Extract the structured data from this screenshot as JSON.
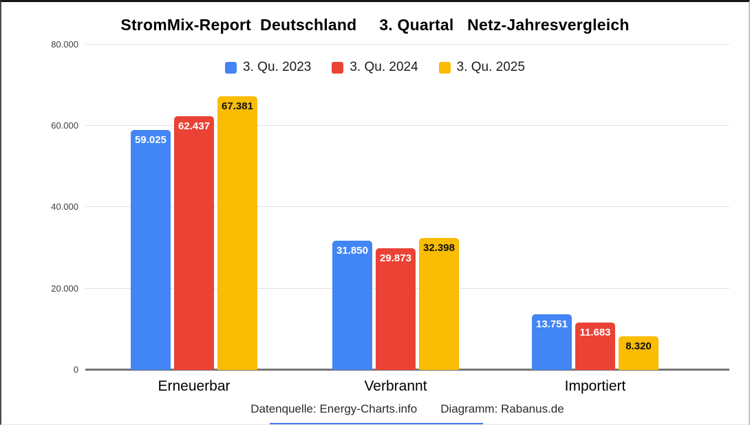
{
  "chart_data": {
    "type": "bar",
    "title": "StromMix-Report  Deutschland     3. Quartal   Netz-Jahresvergleich",
    "xlabel": "",
    "ylabel": "",
    "ylim": [
      0,
      80000
    ],
    "grid": true,
    "legend_position": "top",
    "categories": [
      "Erneuerbar",
      "Verbrannt",
      "Importiert"
    ],
    "series": [
      {
        "name": "3. Qu. 2023",
        "color": "#4285F4",
        "label_color": "#ffffff",
        "values": [
          59025,
          31850,
          13751
        ],
        "labels": [
          "59.025",
          "31.850",
          "13.751"
        ]
      },
      {
        "name": "3. Qu. 2024",
        "color": "#EA4335",
        "label_color": "#ffffff",
        "values": [
          62437,
          29873,
          11683
        ],
        "labels": [
          "62.437",
          "29.873",
          "11.683"
        ]
      },
      {
        "name": "3. Qu. 2025",
        "color": "#FBBC04",
        "label_color": "#111111",
        "values": [
          67381,
          32398,
          8320
        ],
        "labels": [
          "67.381",
          "32.398",
          "8.320"
        ]
      }
    ],
    "y_ticks": [
      {
        "value": 80000,
        "label": "80.000"
      },
      {
        "value": 60000,
        "label": "60.000"
      },
      {
        "value": 40000,
        "label": "40.000"
      },
      {
        "value": 20000,
        "label": "20.000"
      },
      {
        "value": 0,
        "label": "0"
      }
    ],
    "source_note": "Datenquelle: Energy-Charts.info",
    "credit_note": "Diagramm: Rabanus.de"
  },
  "palette": {
    "gridline": "#e2e2e2",
    "axis_baseline": "#757575",
    "accent_bar": "#4577ee"
  }
}
